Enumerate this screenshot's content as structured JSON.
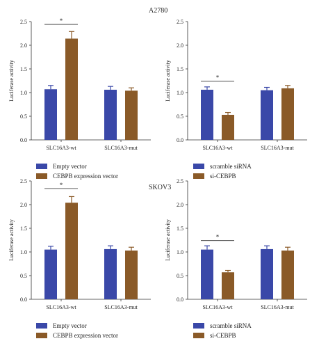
{
  "groups": [
    {
      "label": "A2780"
    },
    {
      "label": "SKOV3"
    }
  ],
  "colors": {
    "blue": "#3a48a8",
    "brown": "#8a5a28",
    "axis": "#333333",
    "text": "#222222"
  },
  "chart_data": [
    {
      "type": "bar",
      "group": "A2780",
      "ylabel": "Luciferase activity",
      "ylim": [
        0,
        2.5
      ],
      "yticks": [
        "0.0",
        "0.5",
        "1.0",
        "1.5",
        "2.0",
        "2.5"
      ],
      "categories": [
        "SLC16A3-wt",
        "SLC16A3-mut"
      ],
      "series": [
        {
          "name": "Empty vector",
          "color": "#3a48a8",
          "values": [
            1.07,
            1.06
          ],
          "errors": [
            0.08,
            0.07
          ]
        },
        {
          "name": "CEBPB expression vector",
          "color": "#8a5a28",
          "values": [
            2.14,
            1.04
          ],
          "errors": [
            0.15,
            0.06
          ]
        }
      ],
      "significance": [
        {
          "category": 0,
          "label": "*",
          "height": 2.44
        }
      ]
    },
    {
      "type": "bar",
      "group": "A2780",
      "ylabel": "Luciferase activity",
      "ylim": [
        0,
        2.5
      ],
      "yticks": [
        "0.0",
        "0.5",
        "1.0",
        "1.5",
        "2.0",
        "2.5"
      ],
      "categories": [
        "SLC16A3-wt",
        "SLC16A3-mut"
      ],
      "series": [
        {
          "name": "scramble siRNA",
          "color": "#3a48a8",
          "values": [
            1.06,
            1.05
          ],
          "errors": [
            0.06,
            0.06
          ]
        },
        {
          "name": "si-CEBPB",
          "color": "#8a5a28",
          "values": [
            0.53,
            1.09
          ],
          "errors": [
            0.05,
            0.06
          ]
        }
      ],
      "significance": [
        {
          "category": 0,
          "label": "*",
          "height": 1.24
        }
      ]
    },
    {
      "type": "bar",
      "group": "SKOV3",
      "ylabel": "Luciferase activity",
      "ylim": [
        0,
        2.5
      ],
      "yticks": [
        "0.0",
        "0.5",
        "1.0",
        "1.5",
        "2.0",
        "2.5"
      ],
      "categories": [
        "SLC16A3-wt",
        "SLC16A3-mut"
      ],
      "series": [
        {
          "name": "Empty vector",
          "color": "#3a48a8",
          "values": [
            1.05,
            1.06
          ],
          "errors": [
            0.07,
            0.07
          ]
        },
        {
          "name": "CEBPB expression vector",
          "color": "#8a5a28",
          "values": [
            2.04,
            1.03
          ],
          "errors": [
            0.13,
            0.07
          ]
        }
      ],
      "significance": [
        {
          "category": 0,
          "label": "*",
          "height": 2.34
        }
      ]
    },
    {
      "type": "bar",
      "group": "SKOV3",
      "ylabel": "Luciferase activity",
      "ylim": [
        0,
        2.5
      ],
      "yticks": [
        "0.0",
        "0.5",
        "1.0",
        "1.5",
        "2.0",
        "2.5"
      ],
      "categories": [
        "SLC16A3-wt",
        "SLC16A3-mut"
      ],
      "series": [
        {
          "name": "scramble siRNA",
          "color": "#3a48a8",
          "values": [
            1.05,
            1.06
          ],
          "errors": [
            0.08,
            0.07
          ]
        },
        {
          "name": "si-CEBPB",
          "color": "#8a5a28",
          "values": [
            0.57,
            1.03
          ],
          "errors": [
            0.04,
            0.07
          ]
        }
      ],
      "significance": [
        {
          "category": 0,
          "label": "*",
          "height": 1.24
        }
      ]
    }
  ]
}
